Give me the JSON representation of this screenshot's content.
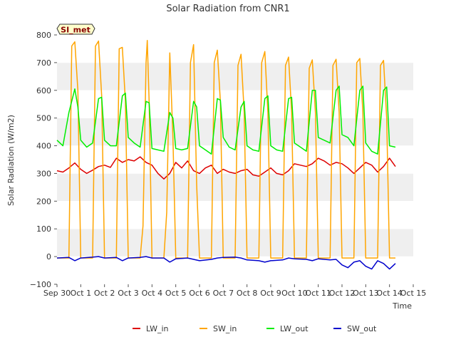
{
  "chart_data": {
    "type": "line",
    "title": "Solar Radiation from CNR1",
    "xlabel": "Time",
    "ylabel": "Solar Radiation (W/m2)",
    "station_label": "SI_met",
    "xlim": [
      0,
      15
    ],
    "ylim": [
      -100,
      800
    ],
    "x_ticks": [
      {
        "value": 0,
        "label": "Sep 30"
      },
      {
        "value": 1,
        "label": "Oct 1"
      },
      {
        "value": 2,
        "label": "Oct 2"
      },
      {
        "value": 3,
        "label": "Oct 3"
      },
      {
        "value": 4,
        "label": "Oct 4"
      },
      {
        "value": 5,
        "label": "Oct 5"
      },
      {
        "value": 6,
        "label": "Oct 6"
      },
      {
        "value": 7,
        "label": "Oct 7"
      },
      {
        "value": 8,
        "label": "Oct 8"
      },
      {
        "value": 9,
        "label": "Oct 9"
      },
      {
        "value": 10,
        "label": "Oct 10"
      },
      {
        "value": 11,
        "label": "Oct 11"
      },
      {
        "value": 12,
        "label": "Oct 12"
      },
      {
        "value": 13,
        "label": "Oct 13"
      },
      {
        "value": 14,
        "label": "Oct 14"
      },
      {
        "value": 15,
        "label": "Oct 15"
      }
    ],
    "y_ticks": [
      {
        "value": -100,
        "label": "−100"
      },
      {
        "value": 0,
        "label": "0"
      },
      {
        "value": 100,
        "label": "100"
      },
      {
        "value": 200,
        "label": "200"
      },
      {
        "value": 300,
        "label": "300"
      },
      {
        "value": 400,
        "label": "400"
      },
      {
        "value": 500,
        "label": "500"
      },
      {
        "value": 600,
        "label": "600"
      },
      {
        "value": 700,
        "label": "700"
      },
      {
        "value": 800,
        "label": "800"
      }
    ],
    "grid": "horizontal bands",
    "legend_position": "bottom",
    "series": [
      {
        "name": "LW_in",
        "color": "#dd0000",
        "x": [
          0.0,
          0.25,
          0.5,
          0.75,
          1.0,
          1.25,
          1.5,
          1.75,
          2.0,
          2.25,
          2.5,
          2.75,
          3.0,
          3.25,
          3.5,
          3.75,
          4.0,
          4.25,
          4.5,
          4.75,
          5.0,
          5.25,
          5.5,
          5.75,
          6.0,
          6.25,
          6.5,
          6.75,
          7.0,
          7.25,
          7.5,
          7.75,
          8.0,
          8.25,
          8.5,
          8.75,
          9.0,
          9.25,
          9.5,
          9.75,
          10.0,
          10.25,
          10.5,
          10.75,
          11.0,
          11.25,
          11.5,
          11.75,
          12.0,
          12.25,
          12.5,
          12.75,
          13.0,
          13.25,
          13.5,
          13.75,
          14.0,
          14.25
        ],
        "values": [
          310,
          305,
          320,
          338,
          315,
          300,
          312,
          325,
          330,
          322,
          355,
          340,
          350,
          345,
          360,
          340,
          330,
          300,
          280,
          300,
          340,
          320,
          345,
          310,
          300,
          320,
          330,
          300,
          315,
          305,
          300,
          310,
          315,
          295,
          290,
          305,
          320,
          300,
          295,
          310,
          335,
          330,
          325,
          335,
          355,
          345,
          330,
          340,
          335,
          320,
          300,
          320,
          340,
          330,
          305,
          325,
          355,
          325
        ]
      },
      {
        "name": "SW_in",
        "color": "#ffa500",
        "x": [
          0.0,
          0.5,
          0.62,
          0.75,
          0.88,
          1.0,
          1.5,
          1.62,
          1.75,
          1.88,
          2.0,
          2.5,
          2.62,
          2.75,
          2.88,
          3.0,
          3.5,
          3.62,
          3.75,
          3.8,
          3.88,
          4.0,
          4.5,
          4.62,
          4.75,
          4.88,
          5.0,
          5.5,
          5.62,
          5.75,
          5.88,
          6.0,
          6.5,
          6.62,
          6.75,
          6.88,
          7.0,
          7.5,
          7.62,
          7.75,
          7.88,
          8.0,
          8.5,
          8.62,
          8.75,
          8.88,
          9.0,
          9.5,
          9.62,
          9.75,
          9.88,
          10.0,
          10.5,
          10.62,
          10.75,
          10.88,
          11.0,
          11.5,
          11.62,
          11.75,
          11.88,
          12.0,
          12.5,
          12.62,
          12.75,
          12.88,
          13.0,
          13.5,
          13.62,
          13.75,
          13.88,
          14.0,
          14.25
        ],
        "values": [
          -5,
          -5,
          760,
          775,
          600,
          -5,
          -5,
          760,
          778,
          580,
          -5,
          -5,
          750,
          755,
          560,
          -5,
          -5,
          110,
          700,
          780,
          560,
          -5,
          -5,
          160,
          735,
          430,
          -5,
          -5,
          700,
          765,
          260,
          -5,
          -5,
          700,
          745,
          560,
          -5,
          -5,
          690,
          730,
          520,
          -5,
          -5,
          700,
          740,
          520,
          -5,
          -5,
          690,
          720,
          520,
          -5,
          -5,
          680,
          710,
          520,
          -5,
          -5,
          690,
          712,
          520,
          -5,
          -5,
          700,
          715,
          520,
          -5,
          -5,
          690,
          708,
          500,
          -5,
          -5
        ]
      },
      {
        "name": "LW_out",
        "color": "#00ee00",
        "x": [
          0.0,
          0.25,
          0.5,
          0.75,
          0.88,
          1.0,
          1.25,
          1.5,
          1.75,
          1.88,
          2.0,
          2.25,
          2.5,
          2.75,
          2.88,
          3.0,
          3.25,
          3.5,
          3.75,
          3.88,
          4.0,
          4.25,
          4.5,
          4.75,
          4.88,
          5.0,
          5.25,
          5.5,
          5.75,
          5.88,
          6.0,
          6.25,
          6.5,
          6.75,
          6.88,
          7.0,
          7.25,
          7.5,
          7.75,
          7.88,
          8.0,
          8.25,
          8.5,
          8.75,
          8.88,
          9.0,
          9.25,
          9.5,
          9.75,
          9.88,
          10.0,
          10.25,
          10.5,
          10.75,
          10.88,
          11.0,
          11.25,
          11.5,
          11.75,
          11.88,
          12.0,
          12.25,
          12.5,
          12.75,
          12.88,
          13.0,
          13.25,
          13.5,
          13.75,
          13.88,
          14.0,
          14.25
        ],
        "values": [
          420,
          400,
          520,
          605,
          540,
          420,
          395,
          410,
          570,
          575,
          420,
          400,
          400,
          580,
          590,
          430,
          410,
          395,
          560,
          555,
          390,
          385,
          380,
          520,
          500,
          390,
          385,
          390,
          560,
          540,
          400,
          385,
          370,
          570,
          565,
          430,
          395,
          385,
          540,
          560,
          400,
          385,
          380,
          570,
          580,
          400,
          385,
          380,
          570,
          575,
          410,
          395,
          380,
          600,
          600,
          430,
          420,
          410,
          600,
          615,
          440,
          430,
          400,
          600,
          615,
          410,
          380,
          370,
          600,
          612,
          400,
          395
        ]
      },
      {
        "name": "SW_out",
        "color": "#0000cc",
        "x": [
          0.0,
          0.5,
          0.75,
          1.0,
          1.5,
          1.75,
          2.0,
          2.5,
          2.75,
          3.0,
          3.5,
          3.75,
          4.0,
          4.5,
          4.75,
          5.0,
          5.5,
          5.75,
          6.0,
          6.5,
          6.75,
          7.0,
          7.5,
          7.75,
          8.0,
          8.5,
          8.75,
          9.0,
          9.5,
          9.75,
          10.0,
          10.5,
          10.75,
          11.0,
          11.5,
          11.75,
          12.0,
          12.25,
          12.5,
          12.75,
          13.0,
          13.25,
          13.5,
          13.75,
          14.0,
          14.25
        ],
        "values": [
          -5,
          -3,
          -15,
          -5,
          -2,
          0,
          -5,
          -3,
          -15,
          -5,
          -3,
          0,
          -5,
          -5,
          -20,
          -8,
          -5,
          -10,
          -15,
          -10,
          -5,
          -3,
          -2,
          -5,
          -12,
          -15,
          -20,
          -15,
          -12,
          -5,
          -8,
          -10,
          -15,
          -8,
          -12,
          -10,
          -30,
          -40,
          -20,
          -15,
          -35,
          -45,
          -15,
          -25,
          -45,
          -25
        ]
      }
    ]
  }
}
